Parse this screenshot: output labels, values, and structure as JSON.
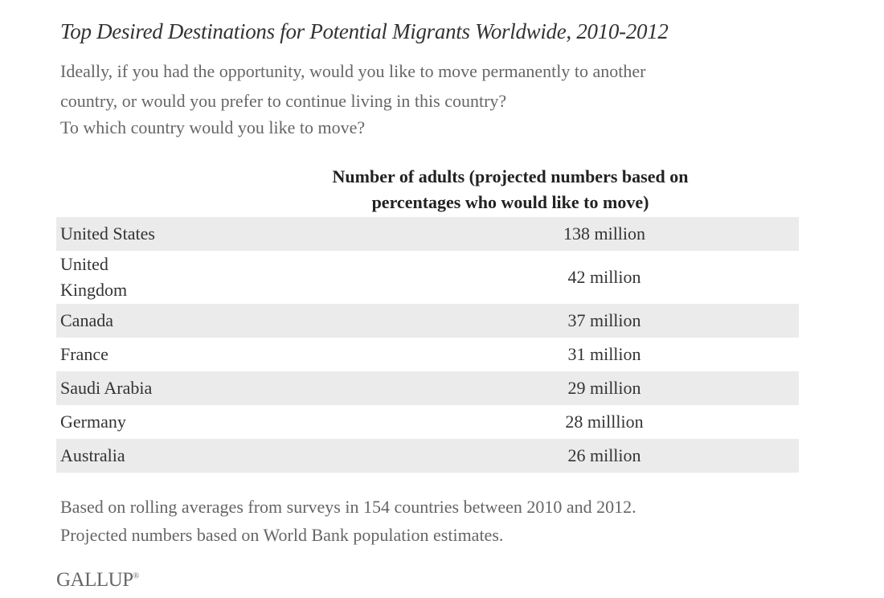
{
  "chart_data": {
    "type": "table",
    "title": "Top Desired Destinations for Potential Migrants Worldwide, 2010-2012",
    "question": [
      "Ideally, if you had the opportunity, would you like to move permanently to another",
      "country,  or would you prefer to continue living in this country?",
      "To which country would you like to move?"
    ],
    "column_header": [
      "Number of adults (projected numbers based on",
      "percentages who would like to move)"
    ],
    "rows": [
      {
        "country": "United States",
        "value": "138 million",
        "millions": 138
      },
      {
        "country": "United Kingdom",
        "value": "42 million",
        "millions": 42
      },
      {
        "country": "Canada",
        "value": "37 million",
        "millions": 37
      },
      {
        "country": "France",
        "value": "31 million",
        "millions": 31
      },
      {
        "country": "Saudi Arabia",
        "value": "29 million",
        "millions": 29
      },
      {
        "country": "Germany",
        "value": "28 milllion",
        "millions": 28
      },
      {
        "country": "Australia",
        "value": "26 million",
        "millions": 26
      }
    ],
    "notes": [
      "Based on rolling averages from surveys in 154 countries between 2010 and 2012.",
      "Projected numbers based on World Bank population estimates."
    ],
    "source_logo": "GALLUP",
    "colors": {
      "row_shade": "#ebebeb",
      "text": "#333333",
      "muted_text": "#666666"
    }
  }
}
